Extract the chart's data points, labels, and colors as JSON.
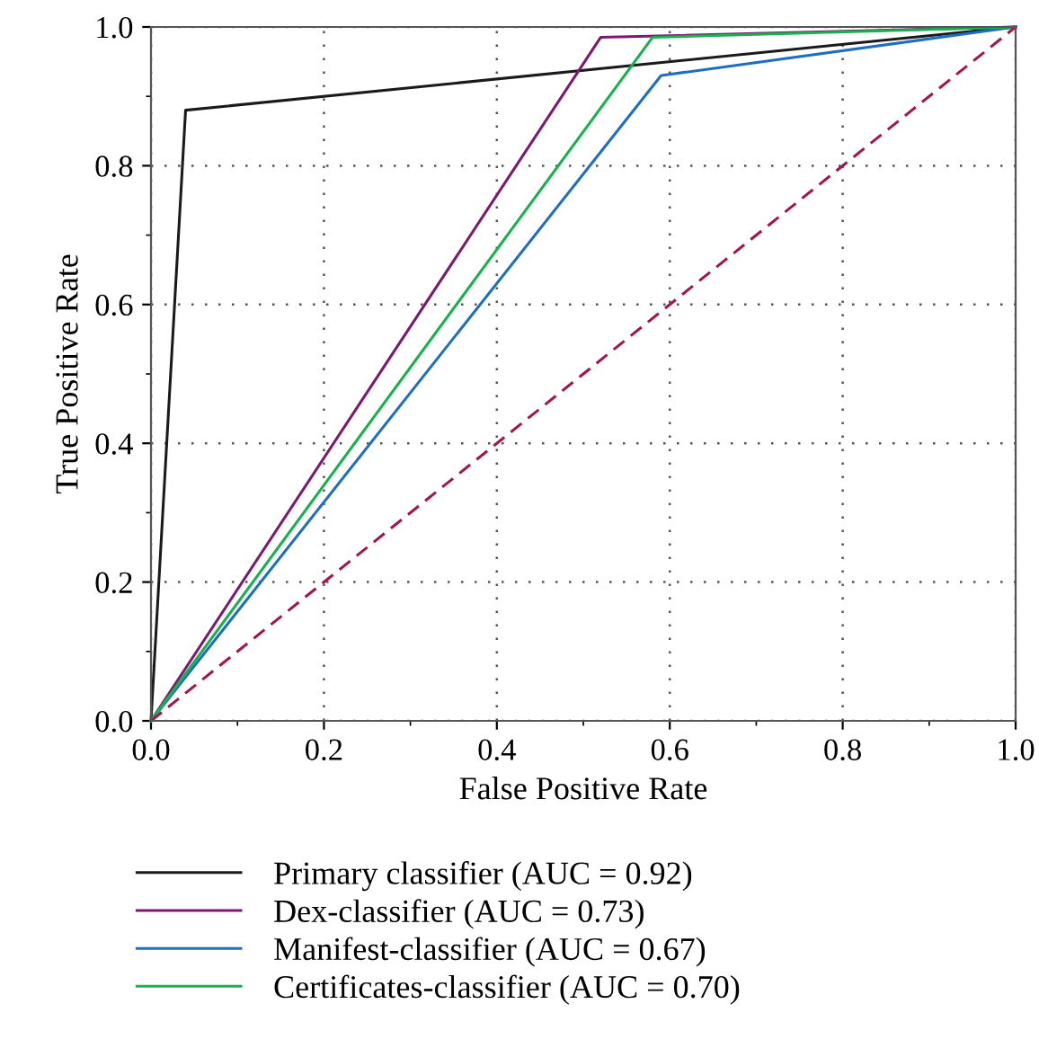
{
  "chart_data": {
    "type": "line",
    "xlabel": "False Positive Rate",
    "ylabel": "True Positive Rate",
    "xlim": [
      0.0,
      1.0
    ],
    "ylim": [
      0.0,
      1.0
    ],
    "xticks": [
      {
        "value": 0,
        "label": "0.0"
      },
      {
        "value": 0.2,
        "label": "0.2"
      },
      {
        "value": 0.4,
        "label": "0.4"
      },
      {
        "value": 0.6,
        "label": "0.6"
      },
      {
        "value": 0.8,
        "label": "0.8"
      },
      {
        "value": 1,
        "label": "1.0"
      }
    ],
    "yticks": [
      {
        "value": 0,
        "label": "0.0"
      },
      {
        "value": 0.2,
        "label": "0.2"
      },
      {
        "value": 0.4,
        "label": "0.4"
      },
      {
        "value": 0.6,
        "label": "0.6"
      },
      {
        "value": 0.8,
        "label": "0.8"
      },
      {
        "value": 1,
        "label": "1.0"
      }
    ],
    "grid": true,
    "legend": "bottom",
    "marker": "none",
    "series": [
      {
        "name": "Primary classifier (AUC = 0.92)",
        "color": "#1a1a1a",
        "x": [
          0,
          0.04,
          1
        ],
        "values": [
          0,
          0.88,
          1
        ],
        "line_style": "solid"
      },
      {
        "name": "Dex-classifier (AUC = 0.73)",
        "color": "#7b1a6e",
        "x": [
          0,
          0.52,
          1
        ],
        "values": [
          0,
          0.985,
          1
        ],
        "line_style": "solid"
      },
      {
        "name": "Manifest-classifier (AUC = 0.67)",
        "color": "#1f6fc0",
        "x": [
          0,
          0.59,
          1
        ],
        "values": [
          0,
          0.93,
          1
        ],
        "line_style": "solid"
      },
      {
        "name": "Certificates-classifier (AUC = 0.70)",
        "color": "#19b04f",
        "x": [
          0,
          0.58,
          1
        ],
        "values": [
          0,
          0.985,
          1
        ],
        "line_style": "solid"
      },
      {
        "color": "#a3154f",
        "x": [
          0,
          1
        ],
        "values": [
          0,
          1
        ],
        "line_style": "dashed"
      }
    ]
  }
}
